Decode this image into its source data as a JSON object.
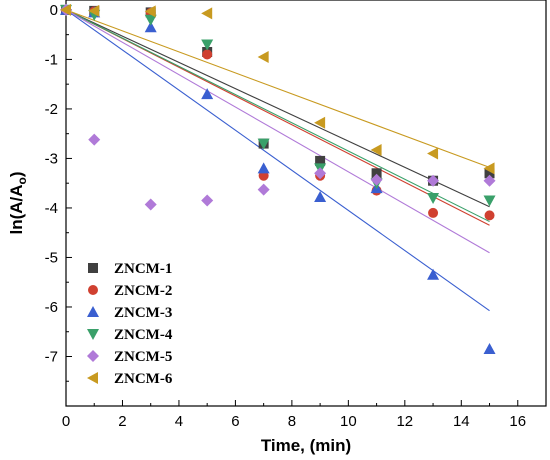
{
  "chart_data": {
    "type": "scatter",
    "xlabel": "Time, (min)",
    "ylabel": "ln(A/Ao)",
    "ylabel_main": "ln(A/A",
    "ylabel_sub": "o",
    "ylabel_close": ")",
    "xlim": [
      0,
      17
    ],
    "ylim": [
      -8,
      0.2
    ],
    "xticks": [
      "0",
      "2",
      "4",
      "6",
      "8",
      "10",
      "12",
      "14",
      "16"
    ],
    "yticks": [
      "0",
      "-1",
      "-2",
      "-3",
      "-4",
      "-5",
      "-6",
      "-7"
    ],
    "legend_position": "bottom-left",
    "x": [
      0,
      1,
      3,
      5,
      7,
      9,
      11,
      13,
      15
    ],
    "series": [
      {
        "name": "ZNCM-1",
        "marker": "square",
        "color": "#404040",
        "values": [
          0,
          -0.02,
          -0.05,
          -0.85,
          -2.7,
          -3.05,
          -3.3,
          -3.45,
          -3.3
        ],
        "fit": [
          0,
          -0.265
        ]
      },
      {
        "name": "ZNCM-2",
        "marker": "circle",
        "color": "#d04030",
        "values": [
          0,
          -0.03,
          -0.06,
          -0.9,
          -3.35,
          -3.35,
          -3.65,
          -4.1,
          -4.15
        ],
        "fit": [
          0,
          -0.29
        ]
      },
      {
        "name": "ZNCM-3",
        "marker": "triangle-up",
        "color": "#3a5fd0",
        "values": [
          0,
          -0.05,
          -0.35,
          -1.7,
          -3.2,
          -3.78,
          -3.6,
          -5.35,
          -6.85
        ],
        "fit": [
          0,
          -0.405
        ]
      },
      {
        "name": "ZNCM-4",
        "marker": "triangle-down",
        "color": "#3aa06a",
        "values": [
          0,
          -0.1,
          -0.2,
          -0.7,
          -2.7,
          -3.2,
          -3.5,
          -3.8,
          -3.85
        ],
        "fit": [
          0,
          -0.285
        ]
      },
      {
        "name": "ZNCM-5",
        "marker": "diamond",
        "color": "#b07ad8",
        "values": [
          0,
          -2.62,
          -3.93,
          -3.85,
          -3.63,
          -3.3,
          -3.43,
          -3.45,
          -3.45
        ],
        "fit": [
          0,
          -0.327
        ]
      },
      {
        "name": "ZNCM-6",
        "marker": "triangle-left",
        "color": "#c89a20",
        "values": [
          0,
          -0.02,
          -0.03,
          -0.07,
          -0.95,
          -2.28,
          -2.83,
          -2.9,
          -3.2
        ],
        "fit": [
          0,
          -0.212
        ]
      }
    ]
  }
}
